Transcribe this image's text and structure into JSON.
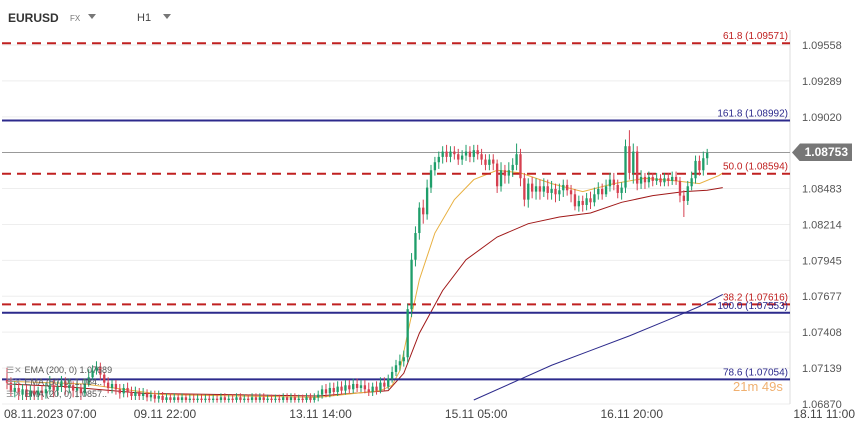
{
  "header": {
    "symbol": "EURUSD",
    "market": "FX",
    "timeframe": "H1"
  },
  "indicators": [
    {
      "label": "EMA (200, 0) 1.07689",
      "color": "#2c2a8c"
    },
    {
      "label": "EMA (50, 0) 1.084..",
      "color": "#b22222"
    },
    {
      "label": "EMA (20, 0) 1.0857..",
      "color": "#e8a020"
    }
  ],
  "timer": "21m 49s",
  "last_price": "1.08753",
  "colors": {
    "up": "#1f9e6a",
    "down": "#d64050",
    "fib_red": "#c02020",
    "fib_blue": "#2c2a8c",
    "ema20": "#e8b040",
    "ema50": "#a01818",
    "ema200": "#2c2a8c"
  },
  "chart_data": {
    "type": "candlestick",
    "y_axis": {
      "min": 1.0687,
      "max": 1.0964,
      "ticks": [
        "1.09558",
        "1.09289",
        "1.09020",
        "1.08483",
        "1.08214",
        "1.07945",
        "1.07677",
        "1.07408",
        "1.07139",
        "1.06870"
      ]
    },
    "x_axis": {
      "labels": [
        {
          "text": "08.11.2023 07:00",
          "index": 0
        },
        {
          "text": "09.11 22:00",
          "index": 39
        },
        {
          "text": "13.11 14:00",
          "index": 79
        },
        {
          "text": "15.11 05:00",
          "index": 119
        },
        {
          "text": "16.11 20:00",
          "index": 159
        },
        {
          "text": "18.11 11:00",
          "index": 199
        }
      ],
      "total_slots": 200
    },
    "levels": [
      {
        "label": "61.8 (1.09571)",
        "value": 1.09571,
        "style": "dashed",
        "color": "fib_red"
      },
      {
        "label": "161.8 (1.08992)",
        "value": 1.08992,
        "style": "solid",
        "color": "fib_blue"
      },
      {
        "label": "50.0 (1.08594)",
        "value": 1.08594,
        "style": "dashed",
        "color": "fib_red"
      },
      {
        "label": "38.2 (1.07616)",
        "value": 1.07616,
        "style": "dashed",
        "color": "fib_red"
      },
      {
        "label": "100.0 (1.07553)",
        "value": 1.07553,
        "style": "solid",
        "color": "fib_blue"
      },
      {
        "label": "78.6 (1.07054)",
        "value": 1.07054,
        "style": "solid",
        "color": "fib_blue"
      }
    ],
    "last_price": 1.08753,
    "candles": [
      [
        1.0705,
        1.0703,
        1.0714,
        1.0698
      ],
      [
        1.0703,
        1.0696,
        1.0707,
        1.0693
      ],
      [
        1.0696,
        1.0699,
        1.0704,
        1.0692
      ],
      [
        1.0699,
        1.0694,
        1.0703,
        1.069
      ],
      [
        1.0694,
        1.0698,
        1.0702,
        1.069
      ],
      [
        1.0698,
        1.0693,
        1.0702,
        1.069
      ],
      [
        1.0693,
        1.0697,
        1.0701,
        1.069
      ],
      [
        1.0697,
        1.0694,
        1.0701,
        1.069
      ],
      [
        1.0694,
        1.0697,
        1.07,
        1.069
      ],
      [
        1.0697,
        1.0695,
        1.0701,
        1.069
      ],
      [
        1.0695,
        1.0698,
        1.0703,
        1.0691
      ],
      [
        1.0698,
        1.0701,
        1.0708,
        1.0694
      ],
      [
        1.0701,
        1.0697,
        1.0705,
        1.0692
      ],
      [
        1.0697,
        1.07,
        1.0704,
        1.0693
      ],
      [
        1.07,
        1.0704,
        1.0708,
        1.0696
      ],
      [
        1.0704,
        1.0699,
        1.0707,
        1.0694
      ],
      [
        1.0699,
        1.0701,
        1.0706,
        1.0695
      ],
      [
        1.0701,
        1.0697,
        1.0704,
        1.0692
      ],
      [
        1.0697,
        1.0699,
        1.0704,
        1.0692
      ],
      [
        1.0699,
        1.0695,
        1.0702,
        1.069
      ],
      [
        1.0695,
        1.0702,
        1.0706,
        1.0693
      ],
      [
        1.0702,
        1.0707,
        1.0713,
        1.07
      ],
      [
        1.0707,
        1.0712,
        1.0716,
        1.0705
      ],
      [
        1.0712,
        1.0715,
        1.0719,
        1.0709
      ],
      [
        1.0715,
        1.0709,
        1.0718,
        1.0705
      ],
      [
        1.0709,
        1.0703,
        1.0711,
        1.07
      ],
      [
        1.0703,
        1.0699,
        1.0707,
        1.0695
      ],
      [
        1.0699,
        1.0702,
        1.0705,
        1.0695
      ],
      [
        1.0702,
        1.0698,
        1.0705,
        1.0694
      ],
      [
        1.0698,
        1.0695,
        1.0702,
        1.0691
      ],
      [
        1.0695,
        1.0699,
        1.0702,
        1.0692
      ],
      [
        1.0699,
        1.0696,
        1.0703,
        1.0692
      ],
      [
        1.0696,
        1.0693,
        1.07,
        1.069
      ],
      [
        1.0693,
        1.0696,
        1.07,
        1.069
      ],
      [
        1.0696,
        1.0693,
        1.0699,
        1.069
      ],
      [
        1.0693,
        1.0695,
        1.0699,
        1.069
      ],
      [
        1.0695,
        1.0692,
        1.0698,
        1.0689
      ],
      [
        1.0692,
        1.0694,
        1.0697,
        1.0689
      ],
      [
        1.0694,
        1.0691,
        1.0697,
        1.0688
      ],
      [
        1.0691,
        1.0693,
        1.0697,
        1.0688
      ],
      [
        1.0693,
        1.069,
        1.0696,
        1.0688
      ],
      [
        1.069,
        1.0692,
        1.0695,
        1.0688
      ],
      [
        1.0692,
        1.069,
        1.0695,
        1.0688
      ],
      [
        1.069,
        1.0692,
        1.0695,
        1.0688
      ],
      [
        1.0692,
        1.069,
        1.0695,
        1.0688
      ],
      [
        1.069,
        1.0692,
        1.0695,
        1.0688
      ],
      [
        1.0692,
        1.069,
        1.0695,
        1.0688
      ],
      [
        1.069,
        1.0691,
        1.0694,
        1.0688
      ],
      [
        1.0691,
        1.069,
        1.0694,
        1.0688
      ],
      [
        1.069,
        1.0691,
        1.0694,
        1.0688
      ],
      [
        1.0691,
        1.069,
        1.0694,
        1.0688
      ],
      [
        1.069,
        1.0691,
        1.0694,
        1.0688
      ],
      [
        1.0691,
        1.069,
        1.0694,
        1.0688
      ],
      [
        1.069,
        1.0691,
        1.0694,
        1.0688
      ],
      [
        1.0691,
        1.069,
        1.0694,
        1.0688
      ],
      [
        1.069,
        1.0692,
        1.0695,
        1.0688
      ],
      [
        1.0692,
        1.069,
        1.0695,
        1.0688
      ],
      [
        1.069,
        1.0691,
        1.0694,
        1.0688
      ],
      [
        1.0691,
        1.069,
        1.0694,
        1.0688
      ],
      [
        1.069,
        1.0692,
        1.0695,
        1.0688
      ],
      [
        1.0692,
        1.069,
        1.0695,
        1.0688
      ],
      [
        1.069,
        1.0691,
        1.0694,
        1.0688
      ],
      [
        1.0691,
        1.069,
        1.0694,
        1.0688
      ],
      [
        1.069,
        1.0692,
        1.0695,
        1.0688
      ],
      [
        1.0692,
        1.069,
        1.0695,
        1.0688
      ],
      [
        1.069,
        1.0692,
        1.0695,
        1.0688
      ],
      [
        1.0692,
        1.069,
        1.0695,
        1.0688
      ],
      [
        1.069,
        1.0691,
        1.0694,
        1.0688
      ],
      [
        1.0691,
        1.069,
        1.0694,
        1.0688
      ],
      [
        1.069,
        1.0691,
        1.0694,
        1.0688
      ],
      [
        1.0691,
        1.069,
        1.0694,
        1.0688
      ],
      [
        1.069,
        1.0692,
        1.0695,
        1.0688
      ],
      [
        1.0692,
        1.069,
        1.0695,
        1.0688
      ],
      [
        1.069,
        1.0692,
        1.0695,
        1.0688
      ],
      [
        1.0692,
        1.069,
        1.0695,
        1.0688
      ],
      [
        1.069,
        1.0691,
        1.0694,
        1.0688
      ],
      [
        1.0691,
        1.069,
        1.0694,
        1.0688
      ],
      [
        1.069,
        1.0692,
        1.0695,
        1.0688
      ],
      [
        1.0692,
        1.069,
        1.0695,
        1.0688
      ],
      [
        1.069,
        1.0692,
        1.0695,
        1.0688
      ],
      [
        1.0692,
        1.0694,
        1.0697,
        1.0689
      ],
      [
        1.0694,
        1.0698,
        1.0701,
        1.0691
      ],
      [
        1.0698,
        1.0695,
        1.0702,
        1.0692
      ],
      [
        1.0695,
        1.0699,
        1.0703,
        1.0692
      ],
      [
        1.0699,
        1.0696,
        1.0703,
        1.0693
      ],
      [
        1.0696,
        1.07,
        1.0704,
        1.0693
      ],
      [
        1.07,
        1.0697,
        1.0704,
        1.0694
      ],
      [
        1.0697,
        1.0701,
        1.0705,
        1.0694
      ],
      [
        1.0701,
        1.0698,
        1.0705,
        1.0695
      ],
      [
        1.0698,
        1.0702,
        1.0706,
        1.0695
      ],
      [
        1.0702,
        1.0699,
        1.0706,
        1.0696
      ],
      [
        1.0699,
        1.0701,
        1.0705,
        1.0696
      ],
      [
        1.0701,
        1.0698,
        1.0705,
        1.0695
      ],
      [
        1.0698,
        1.0696,
        1.0703,
        1.0693
      ],
      [
        1.0696,
        1.07,
        1.0703,
        1.0693
      ],
      [
        1.07,
        1.0697,
        1.0704,
        1.0694
      ],
      [
        1.0697,
        1.0703,
        1.0707,
        1.0695
      ],
      [
        1.0703,
        1.07,
        1.0707,
        1.0697
      ],
      [
        1.07,
        1.0706,
        1.0709,
        1.0698
      ],
      [
        1.0706,
        1.0711,
        1.0715,
        1.0703
      ],
      [
        1.0711,
        1.0716,
        1.072,
        1.0708
      ],
      [
        1.0716,
        1.0719,
        1.0724,
        1.0712
      ],
      [
        1.0719,
        1.0722,
        1.0727,
        1.0715
      ],
      [
        1.0722,
        1.0758,
        1.0762,
        1.0718
      ],
      [
        1.0758,
        1.0795,
        1.08,
        1.0752
      ],
      [
        1.0795,
        1.0815,
        1.082,
        1.079
      ],
      [
        1.0815,
        1.0834,
        1.0838,
        1.081
      ],
      [
        1.0834,
        1.0829,
        1.084,
        1.0822
      ],
      [
        1.0829,
        1.0849,
        1.0855,
        1.0825
      ],
      [
        1.0849,
        1.0862,
        1.0866,
        1.0845
      ],
      [
        1.0862,
        1.0868,
        1.0872,
        1.0858
      ],
      [
        1.0868,
        1.0872,
        1.0876,
        1.0863
      ],
      [
        1.0872,
        1.0876,
        1.088,
        1.0867
      ],
      [
        1.0876,
        1.0872,
        1.0881,
        1.0868
      ],
      [
        1.0872,
        1.0876,
        1.088,
        1.0868
      ],
      [
        1.0876,
        1.0874,
        1.088,
        1.087
      ],
      [
        1.0874,
        1.087,
        1.0878,
        1.0866
      ],
      [
        1.087,
        1.0873,
        1.0877,
        1.0866
      ],
      [
        1.0873,
        1.0876,
        1.0881,
        1.0869
      ],
      [
        1.0876,
        1.0872,
        1.088,
        1.0868
      ],
      [
        1.0872,
        1.0877,
        1.0881,
        1.0868
      ],
      [
        1.0877,
        1.0874,
        1.0881,
        1.087
      ],
      [
        1.0874,
        1.087,
        1.0878,
        1.0866
      ],
      [
        1.087,
        1.0866,
        1.0874,
        1.0862
      ],
      [
        1.0866,
        1.087,
        1.0874,
        1.0862
      ],
      [
        1.087,
        1.0867,
        1.0874,
        1.0862
      ],
      [
        1.0867,
        1.085,
        1.087,
        1.0845
      ],
      [
        1.085,
        1.0862,
        1.0868,
        1.0846
      ],
      [
        1.0862,
        1.0858,
        1.0866,
        1.0852
      ],
      [
        1.0858,
        1.0862,
        1.0868,
        1.0852
      ],
      [
        1.0862,
        1.0866,
        1.0871,
        1.0857
      ],
      [
        1.0866,
        1.0874,
        1.0882,
        1.0862
      ],
      [
        1.0874,
        1.0856,
        1.0878,
        1.085
      ],
      [
        1.0856,
        1.084,
        1.086,
        1.0835
      ],
      [
        1.084,
        1.0852,
        1.0856,
        1.0834
      ],
      [
        1.0852,
        1.0846,
        1.0857,
        1.0841
      ],
      [
        1.0846,
        1.085,
        1.0856,
        1.084
      ],
      [
        1.085,
        1.0846,
        1.0855,
        1.084
      ],
      [
        1.0846,
        1.085,
        1.0856,
        1.0842
      ],
      [
        1.085,
        1.0845,
        1.0855,
        1.084
      ],
      [
        1.0845,
        1.0848,
        1.0854,
        1.084
      ],
      [
        1.0848,
        1.0844,
        1.0852,
        1.0838
      ],
      [
        1.0844,
        1.0847,
        1.0852,
        1.0839
      ],
      [
        1.0847,
        1.0851,
        1.0855,
        1.0842
      ],
      [
        1.0851,
        1.0847,
        1.0855,
        1.0843
      ],
      [
        1.0847,
        1.0844,
        1.0851,
        1.0838
      ],
      [
        1.0844,
        1.0835,
        1.0848,
        1.0832
      ],
      [
        1.0835,
        1.0839,
        1.0843,
        1.0831
      ],
      [
        1.0839,
        1.0836,
        1.0843,
        1.0831
      ],
      [
        1.0836,
        1.0841,
        1.0845,
        1.0832
      ],
      [
        1.0841,
        1.0838,
        1.0846,
        1.0833
      ],
      [
        1.0838,
        1.0844,
        1.0849,
        1.0835
      ],
      [
        1.0844,
        1.0848,
        1.0853,
        1.084
      ],
      [
        1.0848,
        1.0844,
        1.0852,
        1.084
      ],
      [
        1.0844,
        1.085,
        1.0855,
        1.0842
      ],
      [
        1.085,
        1.0855,
        1.086,
        1.0846
      ],
      [
        1.0855,
        1.0851,
        1.086,
        1.0847
      ],
      [
        1.0851,
        1.0845,
        1.0855,
        1.0841
      ],
      [
        1.0845,
        1.0849,
        1.0853,
        1.084
      ],
      [
        1.0849,
        1.088,
        1.0885,
        1.0845
      ],
      [
        1.088,
        1.086,
        1.0892,
        1.0855
      ],
      [
        1.086,
        1.0876,
        1.0882,
        1.0852
      ],
      [
        1.0876,
        1.0852,
        1.088,
        1.0847
      ],
      [
        1.0852,
        1.0857,
        1.0862,
        1.0848
      ],
      [
        1.0857,
        1.0853,
        1.086,
        1.0848
      ],
      [
        1.0853,
        1.0857,
        1.0861,
        1.0849
      ],
      [
        1.0857,
        1.0854,
        1.086,
        1.085
      ],
      [
        1.0854,
        1.0856,
        1.086,
        1.0851
      ],
      [
        1.0856,
        1.0853,
        1.0859,
        1.085
      ],
      [
        1.0853,
        1.0856,
        1.086,
        1.085
      ],
      [
        1.0856,
        1.0854,
        1.086,
        1.085
      ],
      [
        1.0854,
        1.0857,
        1.0861,
        1.0851
      ],
      [
        1.0857,
        1.0854,
        1.0861,
        1.0851
      ],
      [
        1.0854,
        1.0843,
        1.0857,
        1.0838
      ],
      [
        1.0843,
        1.0839,
        1.0847,
        1.0827
      ],
      [
        1.0839,
        1.085,
        1.0854,
        1.0836
      ],
      [
        1.085,
        1.0856,
        1.0861,
        1.0847
      ],
      [
        1.0856,
        1.0869,
        1.0873,
        1.0852
      ],
      [
        1.0869,
        1.0862,
        1.0873,
        1.0858
      ],
      [
        1.0862,
        1.0871,
        1.0876,
        1.0858
      ],
      [
        1.0871,
        1.0875,
        1.0878,
        1.0866
      ]
    ],
    "ema20": [
      [
        0,
        1.0704
      ],
      [
        20,
        1.0702
      ],
      [
        40,
        1.0694
      ],
      [
        80,
        1.0692
      ],
      [
        96,
        1.0697
      ],
      [
        99,
        1.0701
      ],
      [
        101,
        1.0712
      ],
      [
        103,
        1.074
      ],
      [
        106,
        1.078
      ],
      [
        110,
        1.0815
      ],
      [
        115,
        1.084
      ],
      [
        120,
        1.0855
      ],
      [
        126,
        1.0862
      ],
      [
        132,
        1.086
      ],
      [
        140,
        1.0852
      ],
      [
        148,
        1.0846
      ],
      [
        156,
        1.0852
      ],
      [
        164,
        1.0856
      ],
      [
        172,
        1.0854
      ],
      [
        178,
        1.0852
      ],
      [
        183,
        1.0858
      ],
      [
        184,
        1.086
      ]
    ],
    "ema50": [
      [
        0,
        1.0702
      ],
      [
        15,
        1.07
      ],
      [
        35,
        1.0695
      ],
      [
        80,
        1.0693
      ],
      [
        98,
        1.0697
      ],
      [
        102,
        1.071
      ],
      [
        106,
        1.074
      ],
      [
        112,
        1.0772
      ],
      [
        118,
        1.0795
      ],
      [
        126,
        1.0812
      ],
      [
        134,
        1.0822
      ],
      [
        142,
        1.0827
      ],
      [
        150,
        1.083
      ],
      [
        158,
        1.0838
      ],
      [
        166,
        1.0843
      ],
      [
        174,
        1.0846
      ],
      [
        180,
        1.0847
      ],
      [
        184,
        1.0849
      ]
    ],
    "ema200": [
      [
        120,
        1.069
      ],
      [
        130,
        1.0703
      ],
      [
        140,
        1.0716
      ],
      [
        150,
        1.0727
      ],
      [
        160,
        1.0738
      ],
      [
        170,
        1.075
      ],
      [
        178,
        1.076
      ],
      [
        184,
        1.0769
      ]
    ]
  }
}
